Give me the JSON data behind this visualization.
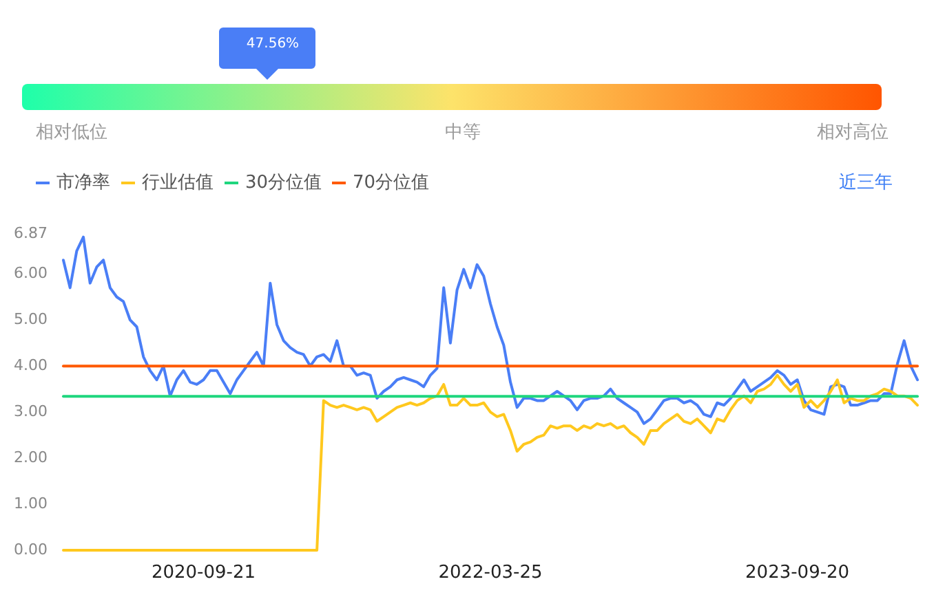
{
  "chart_data": [
    {
      "type": "other",
      "categories": [
        "相对低位",
        "中等",
        "相对高位"
      ],
      "colors": [
        "#1effaa",
        "#fde36a",
        "#ff5500"
      ],
      "annotations": [
        "47.56%"
      ]
    },
    {
      "type": "line",
      "legend": "top left",
      "annotations": [
        "近三年"
      ],
      "categories": [
        null,
        null,
        null,
        null,
        null,
        null,
        null,
        null,
        null,
        null,
        null,
        null,
        null,
        null,
        null,
        null,
        null,
        null,
        null,
        null,
        null,
        "2020-09-21",
        null,
        null,
        null,
        null,
        null,
        null,
        null,
        null,
        null,
        null,
        null,
        null,
        null,
        null,
        null,
        null,
        null,
        null,
        null,
        null,
        null,
        null,
        null,
        null,
        null,
        null,
        null,
        null,
        null,
        null,
        null,
        null,
        null,
        null,
        null,
        null,
        null,
        null,
        null,
        null,
        null,
        null,
        "2022-03-25",
        null,
        null,
        null,
        null,
        null,
        null,
        null,
        null,
        null,
        null,
        null,
        null,
        null,
        null,
        null,
        null,
        null,
        null,
        null,
        null,
        null,
        null,
        null,
        null,
        null,
        null,
        null,
        null,
        null,
        null,
        null,
        null,
        null,
        null,
        null,
        null,
        null,
        null,
        null,
        null,
        null,
        null,
        null,
        null,
        null,
        "2023-09-20",
        null,
        null,
        null,
        null,
        null,
        null,
        null,
        null,
        null,
        null,
        null,
        null,
        null,
        null,
        null,
        null,
        null,
        null
      ],
      "ylim": [
        0,
        6.87
      ],
      "yticks": [
        {
          "value": 0,
          "label": "0.00"
        },
        {
          "value": 1,
          "label": "1.00"
        },
        {
          "value": 2,
          "label": "2.00"
        },
        {
          "value": 3,
          "label": "3.00"
        },
        {
          "value": 4,
          "label": "4.00"
        },
        {
          "value": 5,
          "label": "5.00"
        },
        {
          "value": 6,
          "label": "6.00"
        },
        6.87
      ],
      "series": [
        {
          "name": "市净率",
          "color": "#4a7ef6",
          "values": [
            6.3,
            5.7,
            6.5,
            6.8,
            5.8,
            6.15,
            6.3,
            5.7,
            5.5,
            5.4,
            5.0,
            4.85,
            4.2,
            3.9,
            3.7,
            4.0,
            3.35,
            3.7,
            3.9,
            3.65,
            3.6,
            3.7,
            3.9,
            3.9,
            3.65,
            3.4,
            3.7,
            3.9,
            4.1,
            4.3,
            4.0,
            5.8,
            4.9,
            4.55,
            4.4,
            4.3,
            4.25,
            4.0,
            4.2,
            4.25,
            4.1,
            4.55,
            4.0,
            4.0,
            3.8,
            3.85,
            3.8,
            3.3,
            3.45,
            3.55,
            3.7,
            3.75,
            3.7,
            3.65,
            3.55,
            3.8,
            3.95,
            5.7,
            4.5,
            5.65,
            6.1,
            5.7,
            6.2,
            5.95,
            5.35,
            4.85,
            4.45,
            3.65,
            3.1,
            3.3,
            3.3,
            3.25,
            3.25,
            3.35,
            3.45,
            3.35,
            3.25,
            3.05,
            3.25,
            3.3,
            3.3,
            3.35,
            3.5,
            3.3,
            3.2,
            3.1,
            3.0,
            2.75,
            2.85,
            3.05,
            3.25,
            3.3,
            3.3,
            3.2,
            3.25,
            3.15,
            2.95,
            2.9,
            3.2,
            3.15,
            3.3,
            3.5,
            3.7,
            3.45,
            3.55,
            3.65,
            3.75,
            3.9,
            3.8,
            3.6,
            3.7,
            3.25,
            3.05,
            3.0,
            2.95,
            3.55,
            3.6,
            3.55,
            3.15,
            3.15,
            3.2,
            3.25,
            3.25,
            3.4,
            3.4,
            4.05,
            4.55,
            4.0,
            3.7
          ]
        },
        {
          "name": "行业估值",
          "color": "#ffc81e",
          "values": [
            0,
            0,
            0,
            0,
            0,
            0,
            0,
            0,
            0,
            0,
            0,
            0,
            0,
            0,
            0,
            0,
            0,
            0,
            0,
            0,
            0,
            0,
            0,
            0,
            0,
            0,
            0,
            0,
            0,
            0,
            0,
            0,
            0,
            0,
            0,
            0,
            0,
            0,
            0,
            3.25,
            3.15,
            3.1,
            3.15,
            3.1,
            3.05,
            3.1,
            3.05,
            2.8,
            2.9,
            3.0,
            3.1,
            3.15,
            3.2,
            3.15,
            3.2,
            3.3,
            3.35,
            3.6,
            3.15,
            3.15,
            3.3,
            3.15,
            3.15,
            3.2,
            3.0,
            2.9,
            2.95,
            2.6,
            2.15,
            2.3,
            2.35,
            2.45,
            2.5,
            2.7,
            2.65,
            2.7,
            2.7,
            2.6,
            2.7,
            2.65,
            2.75,
            2.7,
            2.75,
            2.65,
            2.7,
            2.55,
            2.45,
            2.3,
            2.6,
            2.6,
            2.75,
            2.85,
            2.95,
            2.8,
            2.75,
            2.85,
            2.7,
            2.55,
            2.85,
            2.8,
            3.05,
            3.25,
            3.35,
            3.2,
            3.45,
            3.5,
            3.6,
            3.8,
            3.6,
            3.45,
            3.6,
            3.1,
            3.25,
            3.1,
            3.25,
            3.45,
            3.7,
            3.2,
            3.3,
            3.25,
            3.25,
            3.35,
            3.4,
            3.5,
            3.45,
            3.35,
            3.35,
            3.3,
            3.15
          ]
        },
        {
          "name": "30分位值",
          "color": "#1fd67e",
          "values": [
            3.34,
            3.34,
            3.34,
            3.34,
            3.34,
            3.34,
            3.34,
            3.34,
            3.34,
            3.34,
            3.34,
            3.34,
            3.34,
            3.34,
            3.34,
            3.34,
            3.34,
            3.34,
            3.34,
            3.34,
            3.34,
            3.34,
            3.34,
            3.34,
            3.34,
            3.34,
            3.34,
            3.34,
            3.34,
            3.34,
            3.34,
            3.34,
            3.34,
            3.34,
            3.34,
            3.34,
            3.34,
            3.34,
            3.34,
            3.34,
            3.34,
            3.34,
            3.34,
            3.34,
            3.34,
            3.34,
            3.34,
            3.34,
            3.34,
            3.34,
            3.34,
            3.34,
            3.34,
            3.34,
            3.34,
            3.34,
            3.34,
            3.34,
            3.34,
            3.34,
            3.34,
            3.34,
            3.34,
            3.34,
            3.34,
            3.34,
            3.34,
            3.34,
            3.34,
            3.34,
            3.34,
            3.34,
            3.34,
            3.34,
            3.34,
            3.34,
            3.34,
            3.34,
            3.34,
            3.34,
            3.34,
            3.34,
            3.34,
            3.34,
            3.34,
            3.34,
            3.34,
            3.34,
            3.34,
            3.34,
            3.34,
            3.34,
            3.34,
            3.34,
            3.34,
            3.34,
            3.34,
            3.34,
            3.34,
            3.34,
            3.34,
            3.34,
            3.34,
            3.34,
            3.34,
            3.34,
            3.34,
            3.34,
            3.34,
            3.34,
            3.34,
            3.34,
            3.34,
            3.34,
            3.34,
            3.34,
            3.34,
            3.34,
            3.34,
            3.34,
            3.34,
            3.34,
            3.34,
            3.34,
            3.34,
            3.34,
            3.34,
            3.34,
            3.34
          ]
        },
        {
          "name": "70分位值",
          "color": "#ff5a00",
          "values": [
            4.0,
            4.0,
            4.0,
            4.0,
            4.0,
            4.0,
            4.0,
            4.0,
            4.0,
            4.0,
            4.0,
            4.0,
            4.0,
            4.0,
            4.0,
            4.0,
            4.0,
            4.0,
            4.0,
            4.0,
            4.0,
            4.0,
            4.0,
            4.0,
            4.0,
            4.0,
            4.0,
            4.0,
            4.0,
            4.0,
            4.0,
            4.0,
            4.0,
            4.0,
            4.0,
            4.0,
            4.0,
            4.0,
            4.0,
            4.0,
            4.0,
            4.0,
            4.0,
            4.0,
            4.0,
            4.0,
            4.0,
            4.0,
            4.0,
            4.0,
            4.0,
            4.0,
            4.0,
            4.0,
            4.0,
            4.0,
            4.0,
            4.0,
            4.0,
            4.0,
            4.0,
            4.0,
            4.0,
            4.0,
            4.0,
            4.0,
            4.0,
            4.0,
            4.0,
            4.0,
            4.0,
            4.0,
            4.0,
            4.0,
            4.0,
            4.0,
            4.0,
            4.0,
            4.0,
            4.0,
            4.0,
            4.0,
            4.0,
            4.0,
            4.0,
            4.0,
            4.0,
            4.0,
            4.0,
            4.0,
            4.0,
            4.0,
            4.0,
            4.0,
            4.0,
            4.0,
            4.0,
            4.0,
            4.0,
            4.0,
            4.0,
            4.0,
            4.0,
            4.0,
            4.0,
            4.0,
            4.0,
            4.0,
            4.0,
            4.0,
            4.0,
            4.0,
            4.0,
            4.0,
            4.0,
            4.0,
            4.0,
            4.0,
            4.0,
            4.0,
            4.0,
            4.0,
            4.0,
            4.0,
            4.0,
            4.0,
            4.0,
            4.0,
            4.0
          ]
        }
      ]
    }
  ]
}
